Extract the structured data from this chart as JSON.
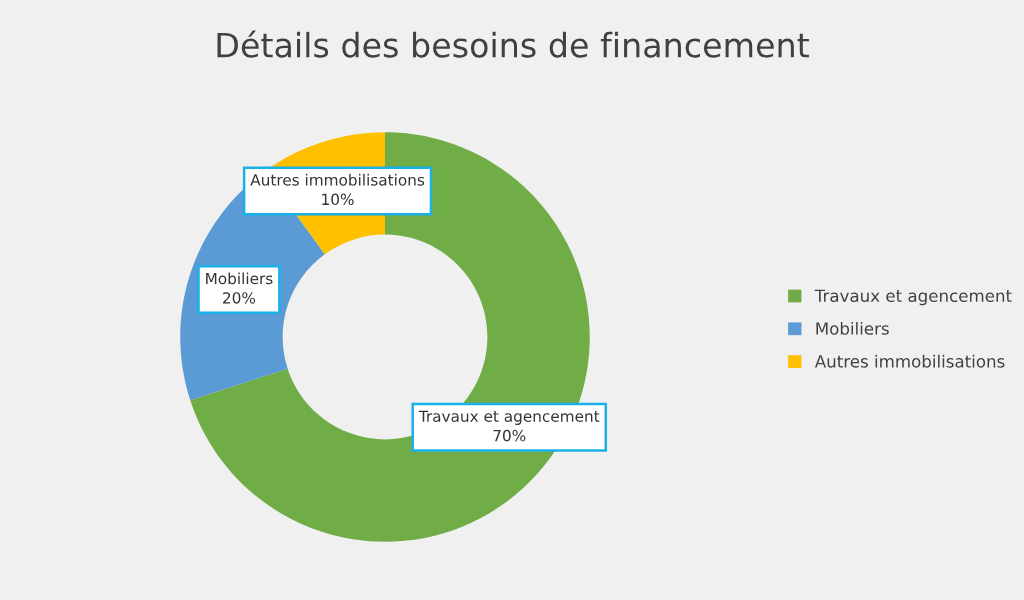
{
  "chart_data": {
    "type": "donut",
    "title": "Détails des besoins de financement",
    "categories": [
      "Travaux et agencement",
      "Mobiliers",
      "Autres immobilisations"
    ],
    "values": [
      70,
      20,
      10
    ],
    "colors": [
      "#70ad47",
      "#5b9bd5",
      "#ffc000"
    ],
    "value_labels": [
      "70%",
      "20%",
      "10%"
    ],
    "legend": "right"
  }
}
